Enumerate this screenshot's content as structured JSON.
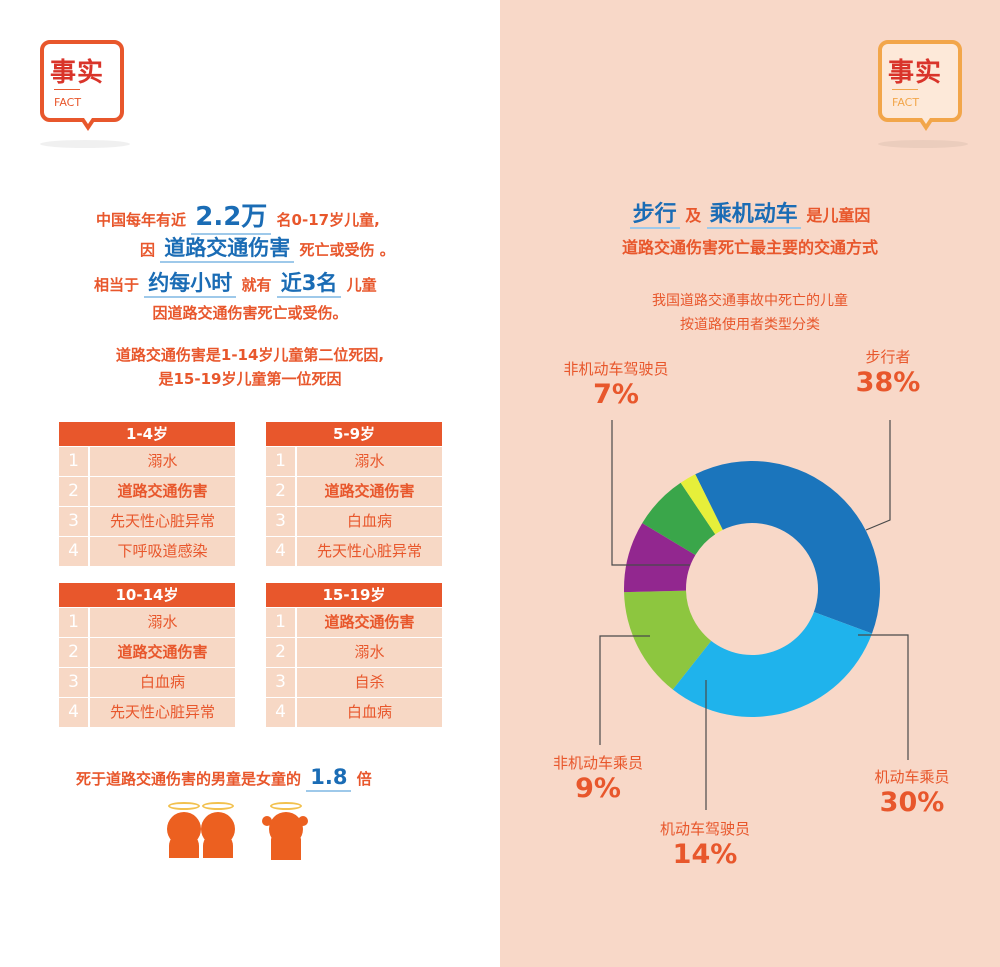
{
  "left": {
    "badge": {
      "title": "事实",
      "subtitle": "FACT"
    },
    "intro": {
      "l1a": "中国每年有近",
      "l1b": "2.2万",
      "l1c": "名0-17岁儿童,",
      "l2a": "因",
      "l2b": "道路交通伤害",
      "l2c": "死亡或受伤 。",
      "l3a": "相当于",
      "l3b": "约每小时",
      "l3c": "就有",
      "l3d": "近3名",
      "l3e": "儿童",
      "l4": "因道路交通伤害死亡或受伤。"
    },
    "rank_text": {
      "l1": "道路交通伤害是1-14岁儿童第二位死因,",
      "l2": "是15-19岁儿童第一位死因"
    },
    "tables": [
      {
        "header": "1-4岁",
        "rows": [
          {
            "n": "1",
            "t": "溺水"
          },
          {
            "n": "2",
            "t": "道路交通伤害"
          },
          {
            "n": "3",
            "t": "先天性心脏异常"
          },
          {
            "n": "4",
            "t": "下呼吸道感染"
          }
        ]
      },
      {
        "header": "5-9岁",
        "rows": [
          {
            "n": "1",
            "t": "溺水"
          },
          {
            "n": "2",
            "t": "道路交通伤害"
          },
          {
            "n": "3",
            "t": "白血病"
          },
          {
            "n": "4",
            "t": "先天性心脏异常"
          }
        ]
      },
      {
        "header": "10-14岁",
        "rows": [
          {
            "n": "1",
            "t": "溺水"
          },
          {
            "n": "2",
            "t": "道路交通伤害"
          },
          {
            "n": "3",
            "t": "白血病"
          },
          {
            "n": "4",
            "t": "先天性心脏异常"
          }
        ]
      },
      {
        "header": "15-19岁",
        "rows": [
          {
            "n": "1",
            "t": "道路交通伤害"
          },
          {
            "n": "2",
            "t": "溺水"
          },
          {
            "n": "3",
            "t": "自杀"
          },
          {
            "n": "4",
            "t": "白血病"
          }
        ]
      }
    ],
    "gender": {
      "a": "死于道路交通伤害的男童是女童的",
      "b": "1.8",
      "c": "倍"
    }
  },
  "right": {
    "badge": {
      "title": "事实",
      "subtitle": "FACT"
    },
    "headline": {
      "a": "步行",
      "b": "及",
      "c": "乘机动车",
      "d": "是儿童因",
      "l2": "道路交通伤害死亡最主要的交通方式"
    }
  },
  "chart_data": {
    "type": "pie",
    "title": "我国道路交通事故中死亡的儿童",
    "subtitle": "按道路使用者类型分类",
    "categories": [
      "步行者",
      "机动车乘员",
      "机动车驾驶员",
      "非机动车乘员",
      "非机动车驾驶员"
    ],
    "values": [
      38,
      30,
      14,
      9,
      7
    ],
    "labels": [
      "38%",
      "30%",
      "14%",
      "9%",
      "7%"
    ],
    "colors": [
      "#1b75bc",
      "#1fb3ec",
      "#8dc63f",
      "#92278f",
      "#3aa64a"
    ],
    "extra_slice_color": "#e6ef3a"
  }
}
